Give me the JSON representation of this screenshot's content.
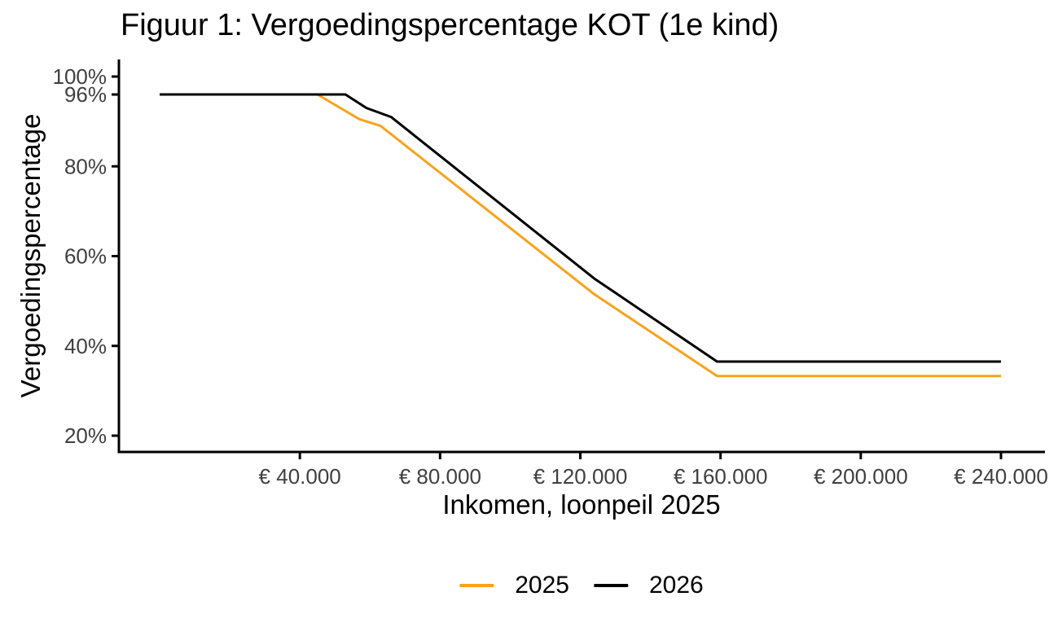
{
  "chart_data": {
    "type": "line",
    "title": "Figuur 1: Vergoedingspercentage KOT (1e kind)",
    "xlabel": "Inkomen, loonpeil 2025",
    "ylabel": "Vergoedingspercentage",
    "grid": false,
    "legend_position": "bottom",
    "axis_color": "#000000",
    "tick_label_color": "#404040",
    "x_axis": {
      "min": 0,
      "max": 240000,
      "ticks": [
        {
          "value": 40000,
          "label": "€ 40.000"
        },
        {
          "value": 80000,
          "label": "€ 80.000"
        },
        {
          "value": 120000,
          "label": "€ 120.000"
        },
        {
          "value": 160000,
          "label": "€ 160.000"
        },
        {
          "value": 200000,
          "label": "€ 200.000"
        },
        {
          "value": 240000,
          "label": "€ 240.000"
        }
      ]
    },
    "y_axis": {
      "min": 20,
      "max": 100,
      "unit": "%",
      "ticks": [
        {
          "value": 100,
          "label": "100%"
        },
        {
          "value": 96,
          "label": "96%"
        },
        {
          "value": 80,
          "label": "80%"
        },
        {
          "value": 60,
          "label": "60%"
        },
        {
          "value": 40,
          "label": "40%"
        },
        {
          "value": 20,
          "label": "20%"
        }
      ]
    },
    "series": [
      {
        "name": "2025",
        "color": "#F8A31D",
        "points": [
          [
            0,
            96
          ],
          [
            45000,
            96
          ],
          [
            57000,
            90.5
          ],
          [
            63000,
            89
          ],
          [
            124000,
            51.5
          ],
          [
            159000,
            33.3
          ],
          [
            240000,
            33.3
          ]
        ]
      },
      {
        "name": "2026",
        "color": "#000000",
        "points": [
          [
            0,
            96
          ],
          [
            53000,
            96
          ],
          [
            59000,
            93
          ],
          [
            66000,
            91
          ],
          [
            124000,
            55
          ],
          [
            159000,
            36.5
          ],
          [
            240000,
            36.5
          ]
        ]
      }
    ]
  }
}
